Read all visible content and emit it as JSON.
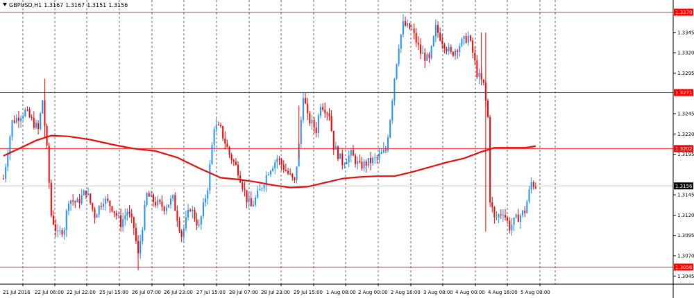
{
  "header": {
    "symbol": "GBPUSD,H1",
    "open": "1.3167",
    "high": "1.3167",
    "low": "1.3151",
    "close": "1.3156"
  },
  "colors": {
    "background": "#ffffff",
    "bull": "#1e90ff",
    "bear": "#ff0000",
    "moving_average": "#e01010",
    "level_line": "#ff2020",
    "level_label_bg": "#ff0000",
    "grid": "#000000",
    "current_price_line": "#c8c8c8"
  },
  "chart_data": {
    "type": "candlestick",
    "title": "",
    "y_ticks": [
      "1.3345",
      "1.3320",
      "1.3295",
      "1.3245",
      "1.3220",
      "1.3195",
      "1.3145",
      "1.3120",
      "1.3095",
      "1.3070",
      "1.3045"
    ],
    "x_ticks": [
      "21 Jul 2016",
      "22 Jul 06:00",
      "22 Jul 22:00",
      "25 Jul 15:00",
      "26 Jul 07:00",
      "26 Jul 23:00",
      "27 Jul 15:00",
      "28 Jul 07:00",
      "28 Jul 23:00",
      "29 Jul 15:00",
      "1 Aug 08:00",
      "2 Aug 00:00",
      "2 Aug 16:00",
      "3 Aug 08:00",
      "4 Aug 00:00",
      "4 Aug 16:00",
      "5 Aug 08:00"
    ],
    "ylim": [
      1.3035,
      1.3385
    ],
    "horizontal_levels": [
      {
        "value": 1.337,
        "label": "1.3370"
      },
      {
        "value": 1.3271,
        "label": "1.3271"
      },
      {
        "value": 1.3202,
        "label": "1.3202"
      },
      {
        "value": 1.3056,
        "label": "1.3056"
      }
    ],
    "current_price": {
      "value": 1.3156,
      "label": "1.3156"
    },
    "moving_average": [
      [
        0,
        1.3193
      ],
      [
        8,
        1.3203
      ],
      [
        15,
        1.3212
      ],
      [
        22,
        1.3218
      ],
      [
        30,
        1.3217
      ],
      [
        40,
        1.3213
      ],
      [
        50,
        1.3207
      ],
      [
        60,
        1.3202
      ],
      [
        70,
        1.3199
      ],
      [
        80,
        1.3191
      ],
      [
        90,
        1.3178
      ],
      [
        100,
        1.3166
      ],
      [
        108,
        1.3164
      ],
      [
        116,
        1.3161
      ],
      [
        124,
        1.3157
      ],
      [
        132,
        1.3154
      ],
      [
        140,
        1.3155
      ],
      [
        148,
        1.316
      ],
      [
        156,
        1.3165
      ],
      [
        164,
        1.3167
      ],
      [
        172,
        1.3168
      ],
      [
        180,
        1.3168
      ],
      [
        188,
        1.3173
      ],
      [
        196,
        1.3179
      ],
      [
        204,
        1.3185
      ],
      [
        212,
        1.319
      ],
      [
        220,
        1.3198
      ],
      [
        226,
        1.3203
      ],
      [
        232,
        1.3203
      ],
      [
        240,
        1.3203
      ],
      [
        245,
        1.3205
      ]
    ],
    "anchors": [
      [
        0,
        1.3165
      ],
      [
        4,
        1.3235
      ],
      [
        10,
        1.3248
      ],
      [
        16,
        1.3225
      ],
      [
        18,
        1.3262
      ],
      [
        20,
        1.32
      ],
      [
        22,
        1.312
      ],
      [
        25,
        1.3095
      ],
      [
        28,
        1.3105
      ],
      [
        30,
        1.314
      ],
      [
        34,
        1.3135
      ],
      [
        38,
        1.315
      ],
      [
        42,
        1.312
      ],
      [
        46,
        1.314
      ],
      [
        50,
        1.313
      ],
      [
        54,
        1.311
      ],
      [
        57,
        1.3125
      ],
      [
        60,
        1.3105
      ],
      [
        62,
        1.307
      ],
      [
        66,
        1.3145
      ],
      [
        70,
        1.3135
      ],
      [
        74,
        1.313
      ],
      [
        78,
        1.314
      ],
      [
        82,
        1.3095
      ],
      [
        86,
        1.313
      ],
      [
        90,
        1.3105
      ],
      [
        94,
        1.3155
      ],
      [
        97,
        1.323
      ],
      [
        100,
        1.3225
      ],
      [
        104,
        1.3195
      ],
      [
        108,
        1.3175
      ],
      [
        112,
        1.314
      ],
      [
        114,
        1.313
      ],
      [
        118,
        1.315
      ],
      [
        122,
        1.3175
      ],
      [
        126,
        1.319
      ],
      [
        130,
        1.3175
      ],
      [
        134,
        1.316
      ],
      [
        136,
        1.3205
      ],
      [
        138,
        1.327
      ],
      [
        140,
        1.324
      ],
      [
        144,
        1.3225
      ],
      [
        146,
        1.3258
      ],
      [
        150,
        1.3245
      ],
      [
        152,
        1.3205
      ],
      [
        156,
        1.3185
      ],
      [
        160,
        1.3195
      ],
      [
        164,
        1.318
      ],
      [
        168,
        1.3185
      ],
      [
        172,
        1.319
      ],
      [
        176,
        1.32
      ],
      [
        178,
        1.324
      ],
      [
        180,
        1.329
      ],
      [
        182,
        1.333
      ],
      [
        184,
        1.3355
      ],
      [
        188,
        1.3348
      ],
      [
        192,
        1.332
      ],
      [
        196,
        1.331
      ],
      [
        199,
        1.335
      ],
      [
        202,
        1.3335
      ],
      [
        206,
        1.3318
      ],
      [
        210,
        1.333
      ],
      [
        214,
        1.334
      ],
      [
        216,
        1.332
      ],
      [
        218,
        1.3295
      ],
      [
        221,
        1.328
      ],
      [
        223,
        1.324
      ],
      [
        224,
        1.314
      ],
      [
        226,
        1.3115
      ],
      [
        230,
        1.3125
      ],
      [
        233,
        1.3105
      ],
      [
        236,
        1.3115
      ],
      [
        240,
        1.3125
      ],
      [
        243,
        1.316
      ],
      [
        245,
        1.3156
      ]
    ]
  }
}
